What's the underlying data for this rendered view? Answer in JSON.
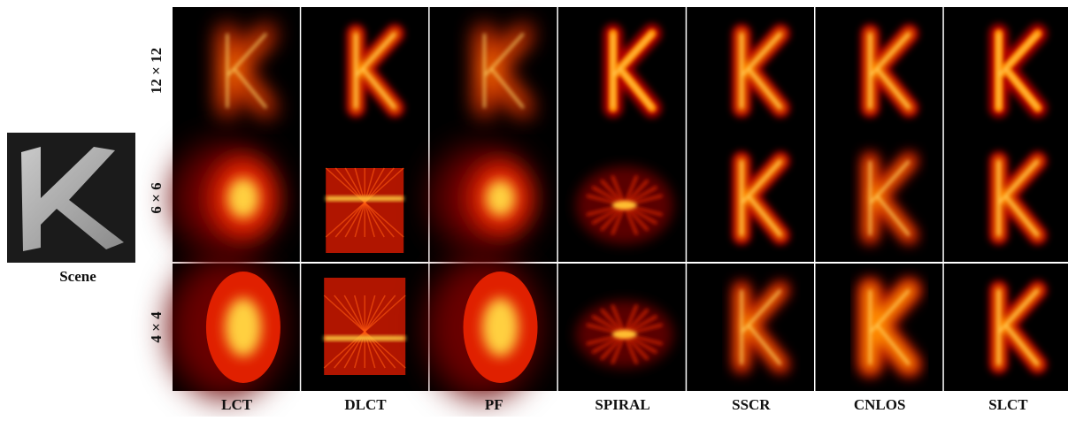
{
  "scene": {
    "label": "Scene"
  },
  "grid": {
    "row_labels": [
      "12 × 12",
      "6 × 6",
      "4 × 4"
    ],
    "column_labels": [
      "LCT",
      "DLCT",
      "PF",
      "SPIRAL",
      "SSCR",
      "CNLOS",
      "SLCT"
    ]
  }
}
